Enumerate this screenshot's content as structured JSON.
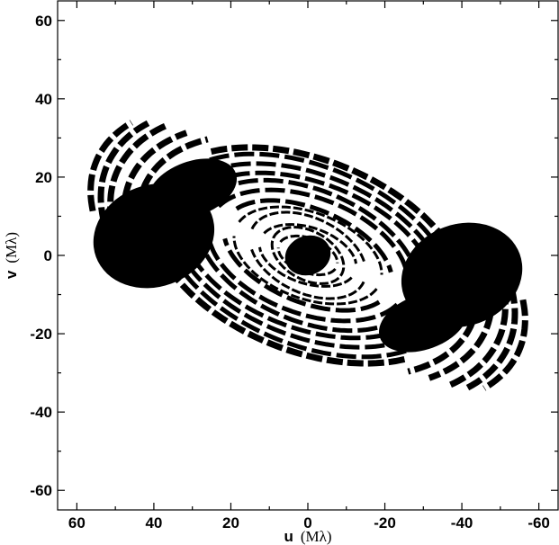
{
  "chart_data": {
    "type": "scatter",
    "title": "",
    "xlabel": {
      "symbol": "u",
      "unit": "(Mλ)"
    },
    "ylabel": {
      "symbol": "v",
      "unit": "(Mλ)"
    },
    "xlim": [
      65,
      -65
    ],
    "ylim": [
      -65,
      65
    ],
    "x_reversed": true,
    "xticks": [
      60,
      40,
      20,
      0,
      -20,
      -40,
      -60
    ],
    "yticks": [
      60,
      40,
      20,
      0,
      -20,
      -40,
      -60
    ],
    "grid": false,
    "legend": "none",
    "marker_color": "#000000",
    "description_free": true,
    "tracks": [
      {
        "r": 5,
        "ratio": 0.55,
        "tilt": 22,
        "arcs": [
          [
            0,
            360
          ]
        ]
      },
      {
        "r": 8,
        "ratio": 0.55,
        "tilt": 20,
        "arcs": [
          [
            10,
            170
          ],
          [
            190,
            350
          ]
        ]
      },
      {
        "r": 10,
        "ratio": 0.62,
        "tilt": 28,
        "arcs": [
          [
            0,
            360
          ]
        ]
      },
      {
        "r": 13,
        "ratio": 0.55,
        "tilt": 18,
        "arcs": [
          [
            15,
            165
          ],
          [
            195,
            345
          ]
        ]
      },
      {
        "r": 16,
        "ratio": 0.6,
        "tilt": 25,
        "arcs": [
          [
            0,
            150
          ],
          [
            180,
            330
          ]
        ]
      },
      {
        "r": 20,
        "ratio": 0.55,
        "tilt": 20,
        "arcs": [
          [
            10,
            170
          ],
          [
            190,
            350
          ]
        ]
      },
      {
        "r": 23,
        "ratio": 0.52,
        "tilt": 22,
        "arcs": [
          [
            20,
            160
          ],
          [
            200,
            340
          ]
        ]
      },
      {
        "r": 27,
        "ratio": 0.55,
        "tilt": 20,
        "arcs": [
          [
            15,
            165
          ],
          [
            195,
            345
          ]
        ]
      },
      {
        "r": 30,
        "ratio": 0.56,
        "tilt": 22,
        "arcs": [
          [
            20,
            160
          ],
          [
            200,
            340
          ]
        ]
      },
      {
        "r": 34,
        "ratio": 0.55,
        "tilt": 20,
        "arcs": [
          [
            25,
            155
          ],
          [
            205,
            335
          ]
        ]
      },
      {
        "r": 37,
        "ratio": 0.56,
        "tilt": 21,
        "arcs": [
          [
            30,
            150
          ],
          [
            210,
            330
          ]
        ]
      },
      {
        "r": 40,
        "ratio": 0.57,
        "tilt": 22,
        "arcs": [
          [
            35,
            145
          ],
          [
            215,
            325
          ]
        ]
      },
      {
        "r": 43,
        "ratio": 0.57,
        "tilt": 21,
        "arcs": [
          [
            40,
            140
          ],
          [
            220,
            320
          ]
        ]
      },
      {
        "r": 46,
        "ratio": 0.6,
        "tilt": 22,
        "arcs": [
          [
            -40,
            40
          ],
          [
            140,
            220
          ]
        ]
      },
      {
        "r": 50,
        "ratio": 0.6,
        "tilt": 22,
        "arcs": [
          [
            -35,
            35
          ],
          [
            145,
            215
          ]
        ]
      },
      {
        "r": 54,
        "ratio": 0.6,
        "tilt": 23,
        "arcs": [
          [
            -30,
            30
          ],
          [
            150,
            210
          ]
        ]
      },
      {
        "r": 57,
        "ratio": 0.58,
        "tilt": 24,
        "arcs": [
          [
            -25,
            25
          ],
          [
            155,
            205
          ]
        ]
      },
      {
        "r": 60,
        "ratio": 0.55,
        "tilt": 24,
        "arcs": [
          [
            -22,
            22
          ],
          [
            158,
            202
          ]
        ]
      }
    ],
    "blobs": [
      {
        "cx": 40,
        "cy": 5,
        "rx": 16,
        "ry": 13
      },
      {
        "cx": -40,
        "cy": -5,
        "rx": 16,
        "ry": 13
      },
      {
        "cx": 30,
        "cy": 17,
        "rx": 12,
        "ry": 7
      },
      {
        "cx": -30,
        "cy": -17,
        "rx": 12,
        "ry": 7
      },
      {
        "cx": 0,
        "cy": 0,
        "rx": 6,
        "ry": 5
      }
    ]
  }
}
